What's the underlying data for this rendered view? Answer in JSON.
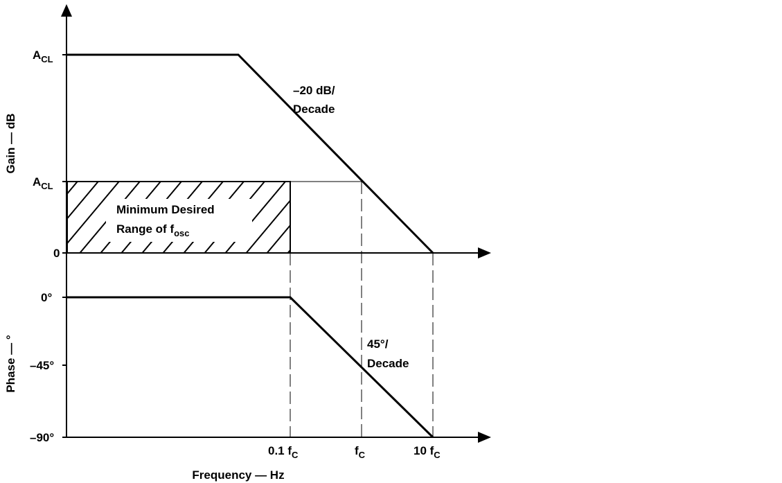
{
  "gain_axis": {
    "label": "Gain — dB",
    "ticks": [
      {
        "id": "acl-top",
        "main": "A",
        "sub": "CL"
      },
      {
        "id": "acl-mid",
        "main": "A",
        "sub": "CL"
      },
      {
        "id": "zero",
        "main": "0",
        "sub": ""
      }
    ]
  },
  "phase_axis": {
    "label": "Phase — °",
    "ticks": [
      "0°",
      "–45°",
      "–90°"
    ]
  },
  "freq_axis": {
    "label": "Frequency — Hz",
    "ticks": [
      {
        "id": "tenth-fc",
        "main": "0.1 f",
        "sub": "C"
      },
      {
        "id": "fc",
        "main": "f",
        "sub": "C"
      },
      {
        "id": "ten-fc",
        "main": "10 f",
        "sub": "C"
      }
    ]
  },
  "annotations": {
    "gain_slope_line1": "–20 dB/",
    "gain_slope_line2": "Decade",
    "phase_slope_line1": "45°/",
    "phase_slope_line2": "Decade",
    "range_line1": "Minimum Desired",
    "range_line2_main": "Range of f",
    "range_line2_sub": "osc"
  }
}
